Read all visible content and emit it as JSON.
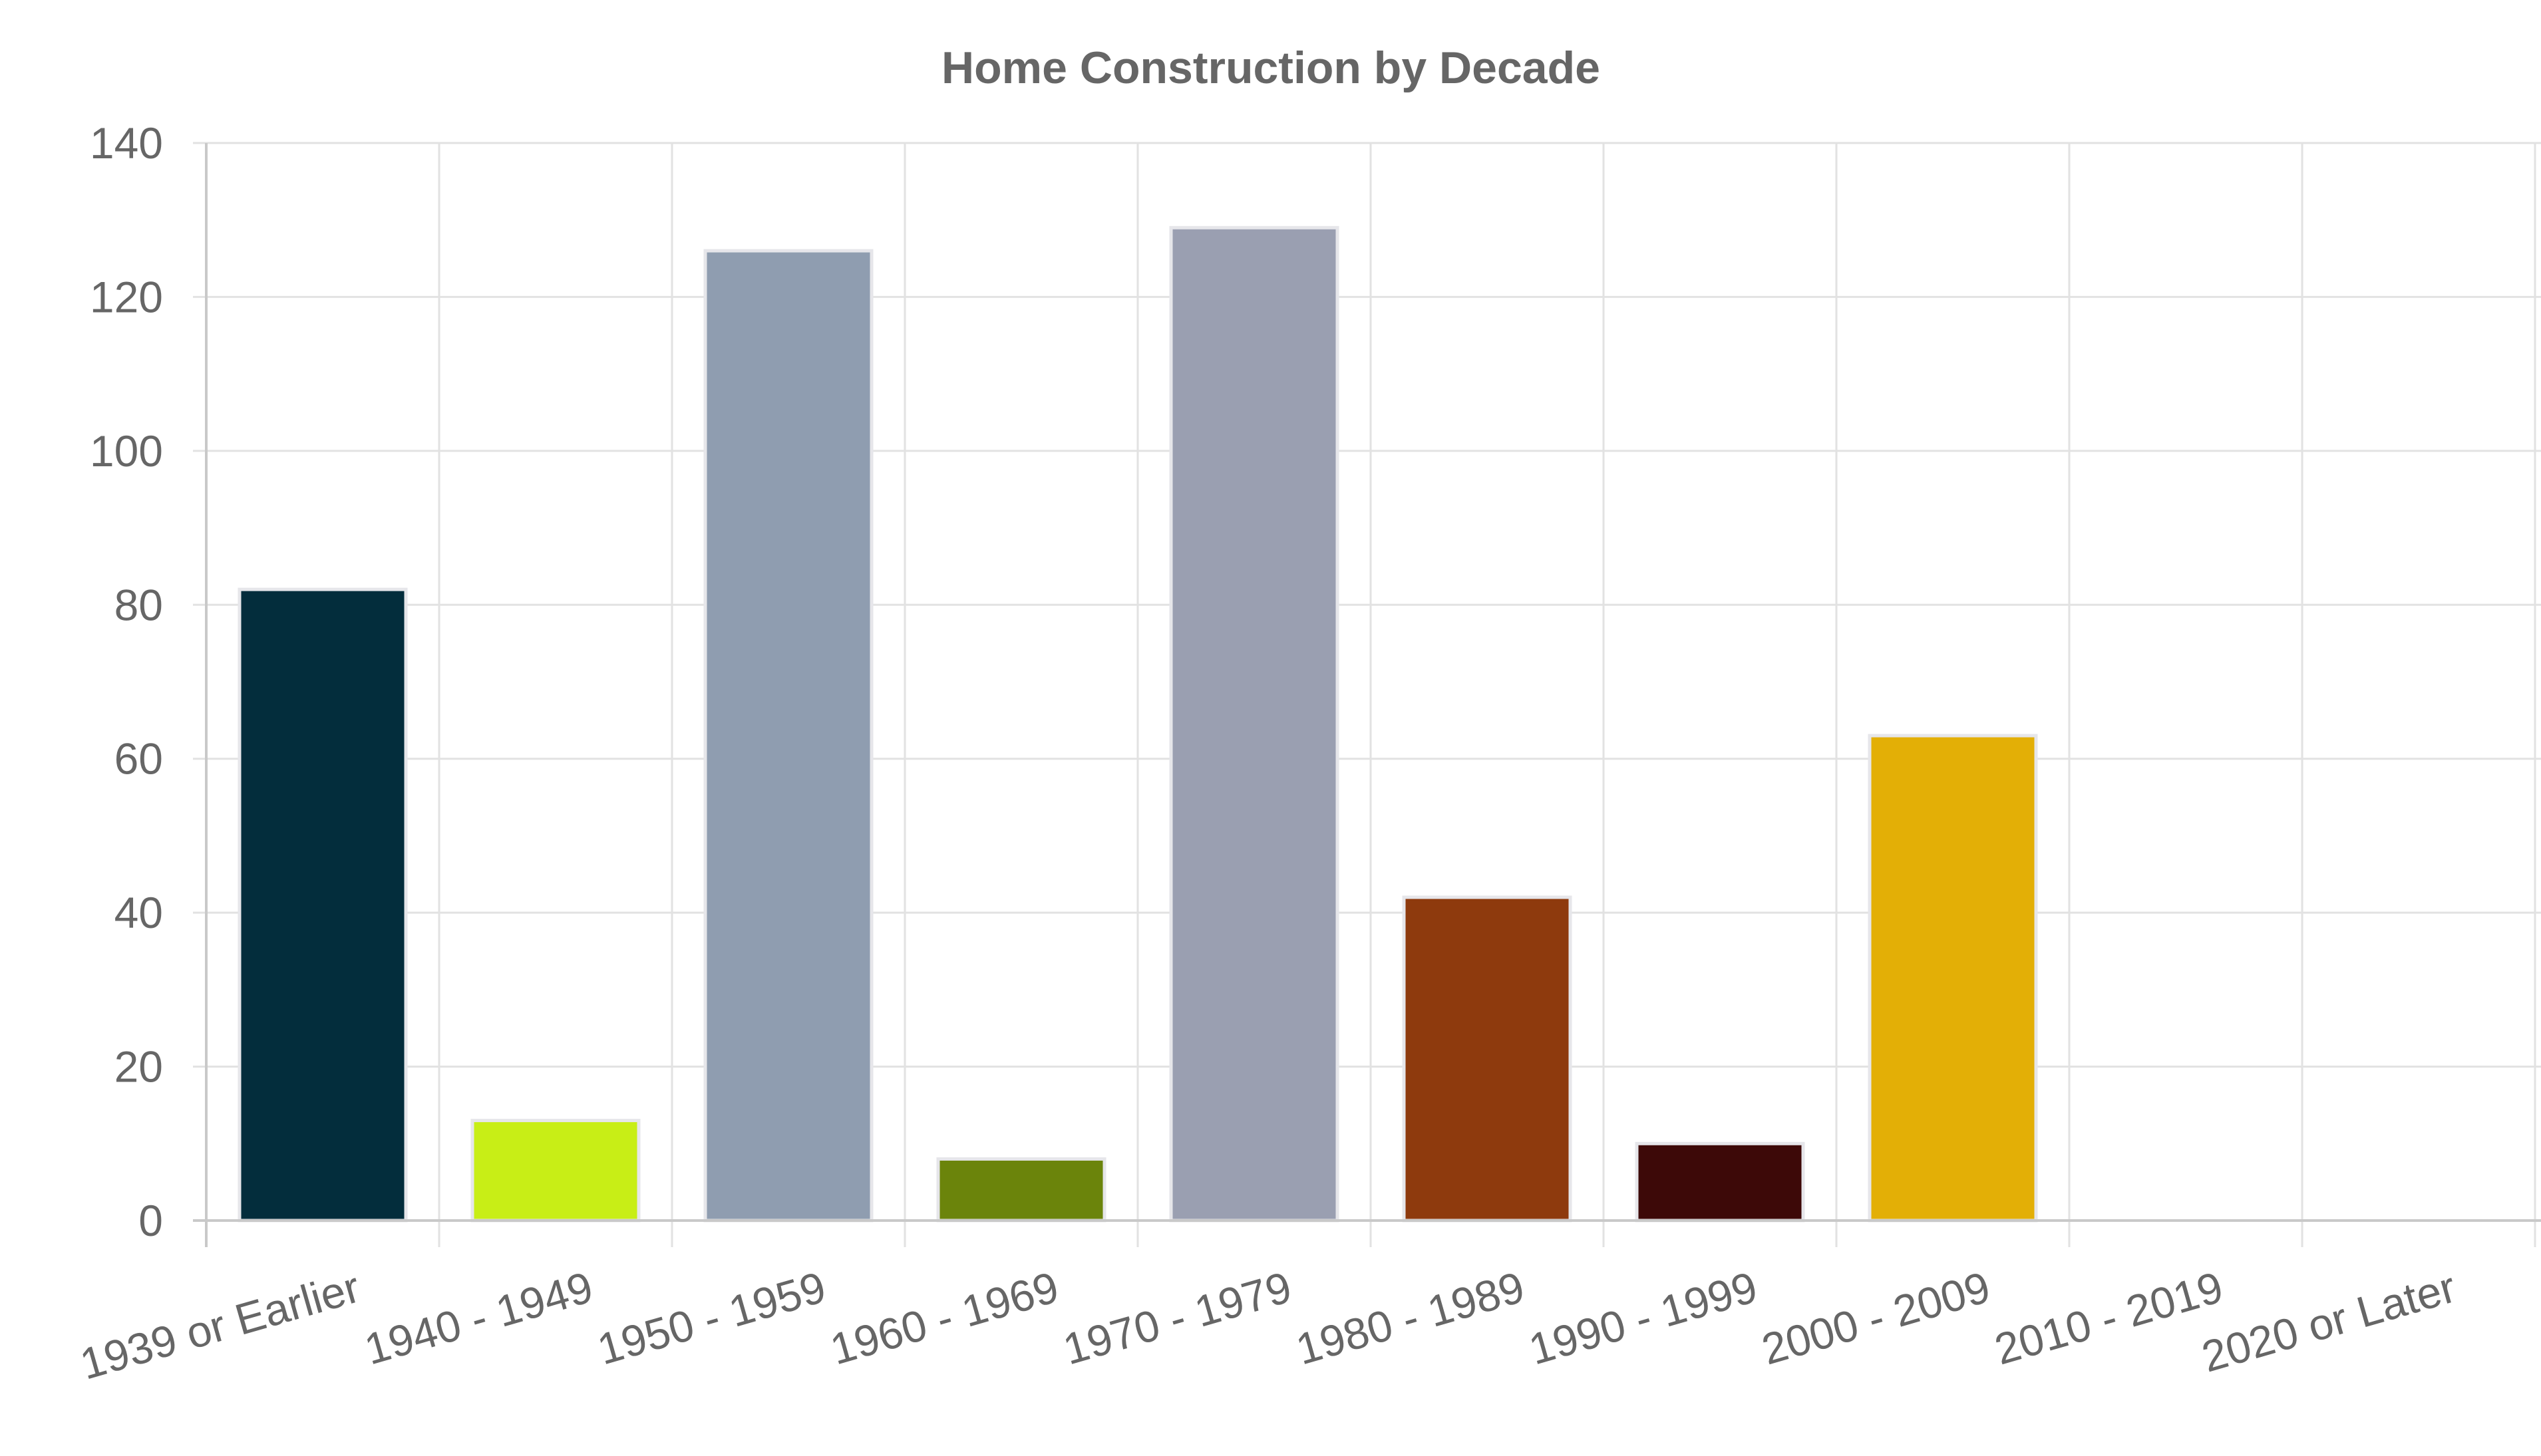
{
  "chart_data": {
    "type": "bar",
    "title": "Home Construction by Decade",
    "xlabel": "",
    "ylabel": "",
    "categories": [
      "1939 or Earlier",
      "1940 - 1949",
      "1950 - 1959",
      "1960 - 1969",
      "1970 - 1979",
      "1980 - 1989",
      "1990 - 1999",
      "2000 - 2009",
      "2010 - 2019",
      "2020 or Later"
    ],
    "values": [
      82,
      13,
      126,
      8,
      129,
      42,
      10,
      63,
      0,
      0
    ],
    "colors": [
      "#032d3c",
      "#c8ee16",
      "#8f9db0",
      "#6b840b",
      "#9a9fb1",
      "#8e3a0d",
      "#3d0908",
      "#e3af06",
      "#cccccc",
      "#cccccc"
    ],
    "ylim": [
      0,
      140
    ],
    "yticks": [
      0,
      20,
      40,
      60,
      80,
      100,
      120,
      140
    ],
    "grid": true,
    "legend": "none"
  }
}
